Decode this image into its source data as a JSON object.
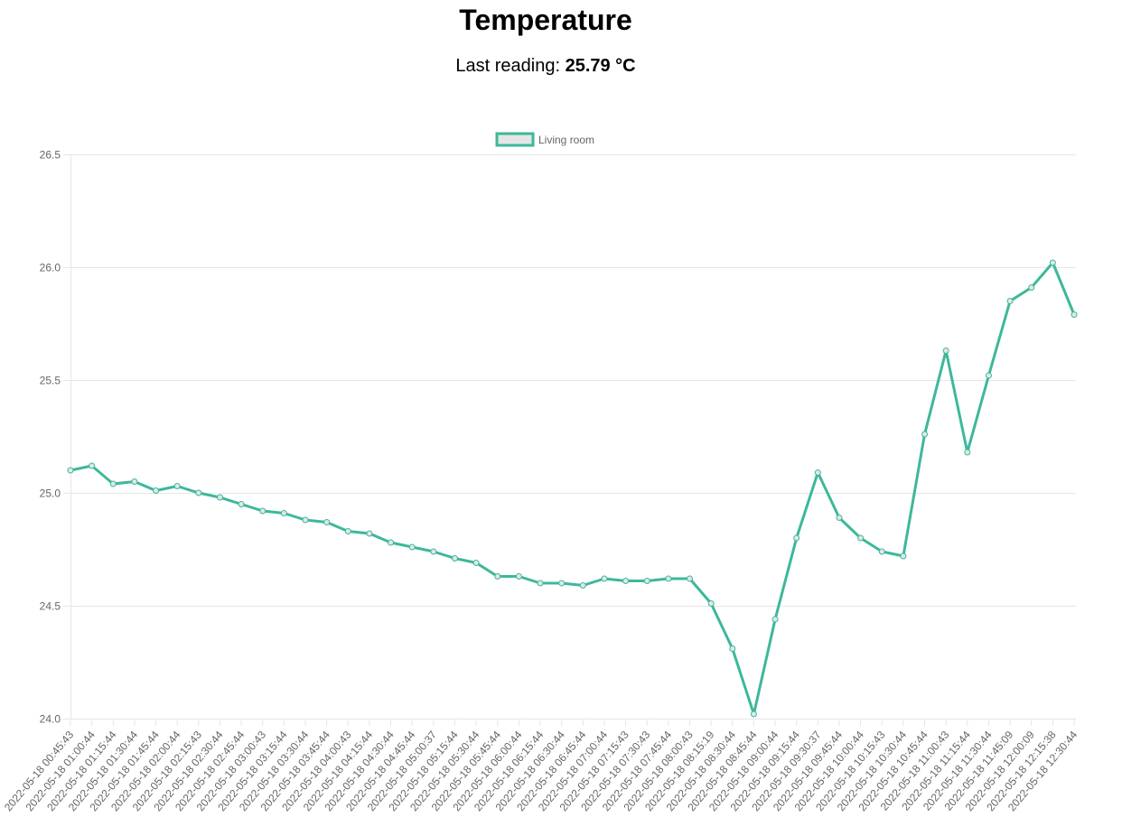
{
  "page": {
    "title": "Temperature",
    "reading_label": "Last reading: ",
    "reading_value": "25.79 °C"
  },
  "chart_data": {
    "type": "line",
    "legend_position": "top",
    "grid": true,
    "ylim": [
      24.0,
      26.5
    ],
    "y_ticks": [
      "24.0",
      "24.5",
      "25.0",
      "25.5",
      "26.0",
      "26.5"
    ],
    "y_tick_values": [
      24.0,
      24.5,
      25.0,
      25.5,
      26.0,
      26.5
    ],
    "series_color": "#3cb89b",
    "legend_fill": "#e5e5e5",
    "categories": [
      "2022-05-18 00:45:43",
      "2022-05-18 01:00:44",
      "2022-05-18 01:15:44",
      "2022-05-18 01:30:44",
      "2022-05-18 01:45:44",
      "2022-05-18 02:00:44",
      "2022-05-18 02:15:43",
      "2022-05-18 02:30:44",
      "2022-05-18 02:45:44",
      "2022-05-18 03:00:43",
      "2022-05-18 03:15:44",
      "2022-05-18 03:30:44",
      "2022-05-18 03:45:44",
      "2022-05-18 04:00:43",
      "2022-05-18 04:15:44",
      "2022-05-18 04:30:44",
      "2022-05-18 04:45:44",
      "2022-05-18 05:00:37",
      "2022-05-18 05:15:44",
      "2022-05-18 05:30:44",
      "2022-05-18 05:45:44",
      "2022-05-18 06:00:44",
      "2022-05-18 06:15:44",
      "2022-05-18 06:30:44",
      "2022-05-18 06:45:44",
      "2022-05-18 07:00:44",
      "2022-05-18 07:15:43",
      "2022-05-18 07:30:43",
      "2022-05-18 07:45:44",
      "2022-05-18 08:00:43",
      "2022-05-18 08:15:19",
      "2022-05-18 08:30:44",
      "2022-05-18 08:45:44",
      "2022-05-18 09:00:44",
      "2022-05-18 09:15:44",
      "2022-05-18 09:30:37",
      "2022-05-18 09:45:44",
      "2022-05-18 10:00:44",
      "2022-05-18 10:15:43",
      "2022-05-18 10:30:44",
      "2022-05-18 10:45:44",
      "2022-05-18 11:00:43",
      "2022-05-18 11:15:44",
      "2022-05-18 11:30:44",
      "2022-05-18 11:45:09",
      "2022-05-18 12:00:09",
      "2022-05-18 12:15:38",
      "2022-05-18 12:30:44"
    ],
    "series": [
      {
        "name": "Living room",
        "values": [
          25.1,
          25.12,
          25.04,
          25.05,
          25.01,
          25.03,
          25.0,
          24.98,
          24.95,
          24.92,
          24.91,
          24.88,
          24.87,
          24.83,
          24.82,
          24.78,
          24.76,
          24.74,
          24.71,
          24.69,
          24.63,
          24.63,
          24.6,
          24.6,
          24.59,
          24.62,
          24.61,
          24.61,
          24.62,
          24.62,
          24.51,
          24.31,
          24.02,
          24.44,
          24.8,
          25.09,
          24.89,
          24.8,
          24.74,
          24.72,
          25.26,
          25.63,
          25.18,
          25.52,
          25.85,
          25.91,
          26.02,
          25.79
        ]
      }
    ]
  }
}
